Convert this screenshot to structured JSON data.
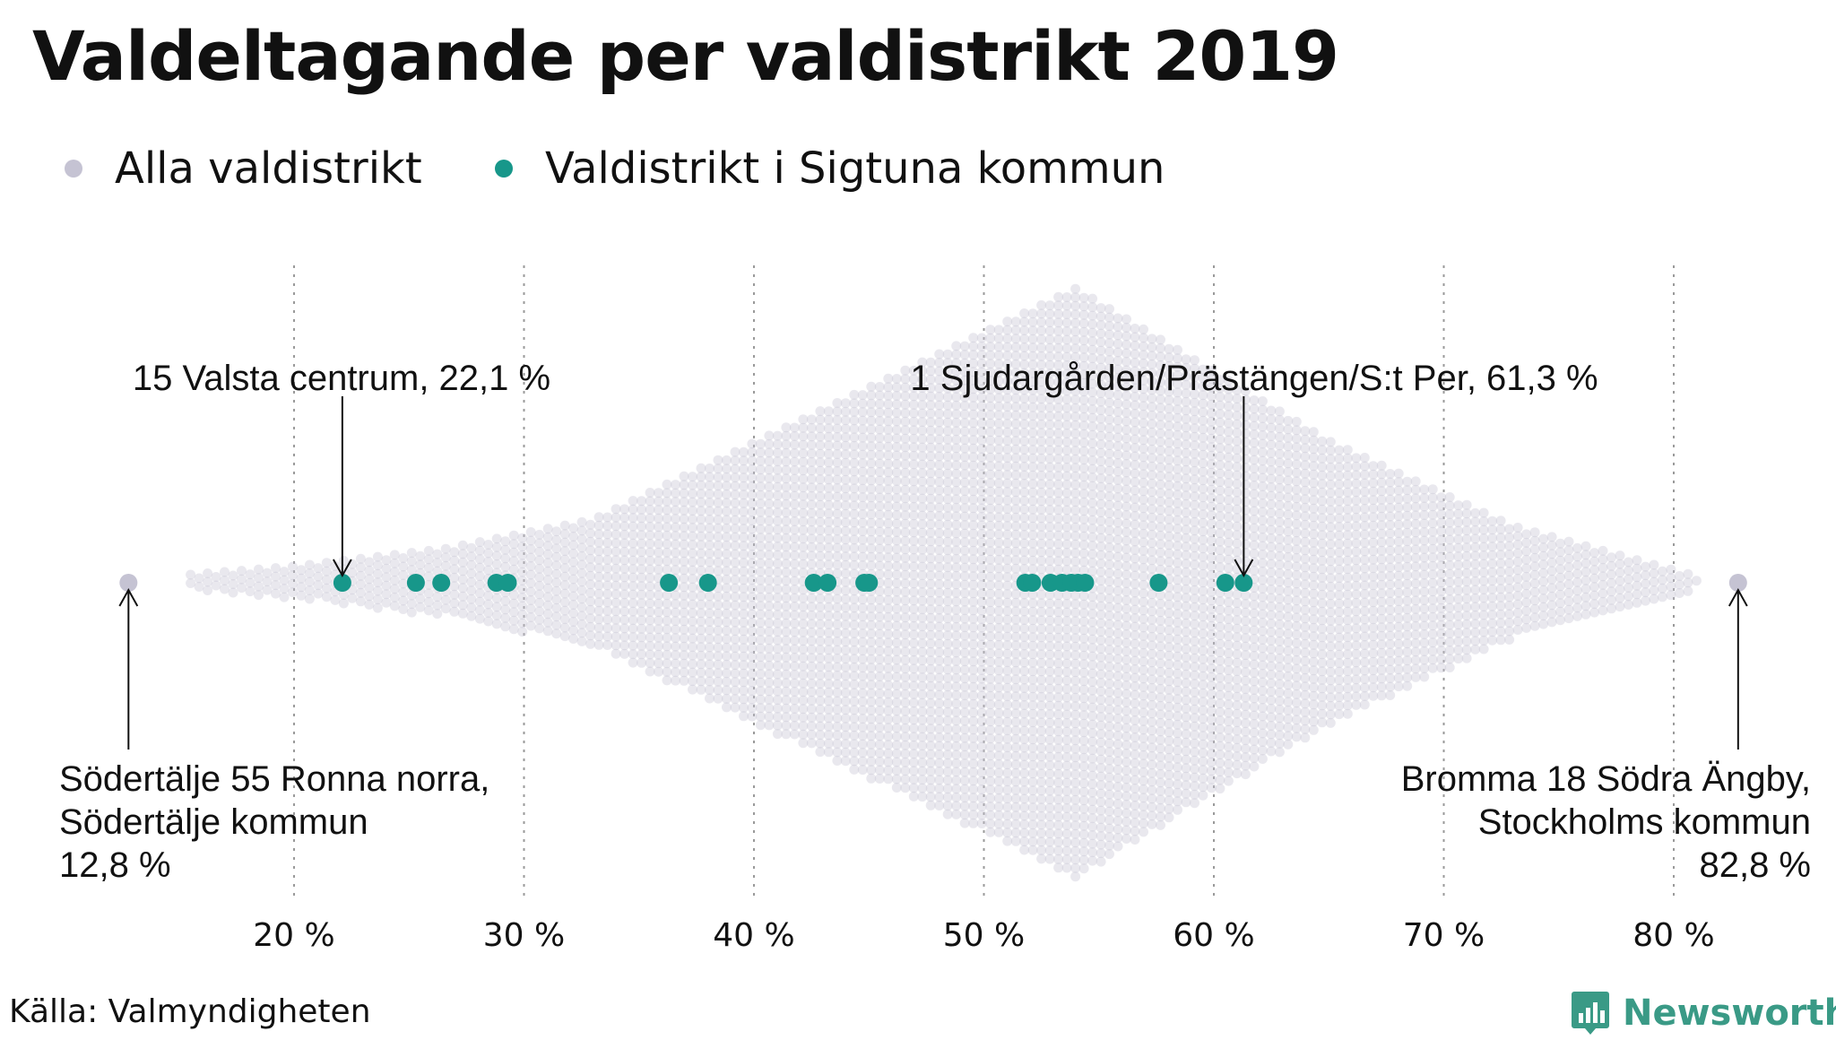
{
  "title": "Valdeltagande per valdistrikt 2019",
  "legend": [
    {
      "label": "Alla valdistrikt",
      "color": "#c5c3d3"
    },
    {
      "label": "Valdistrikt i Sigtuna kommun",
      "color": "#17978a"
    }
  ],
  "source": "Källa: Valmyndigheten",
  "brand": {
    "name": "Newsworthy",
    "icon": "newsworthy-logo-icon",
    "color": "#3a9a86"
  },
  "chart_data": {
    "type": "scatter",
    "subtype": "beeswarm",
    "title": "Valdeltagande per valdistrikt 2019",
    "xlabel": "",
    "ylabel": "",
    "xlim": [
      12,
      84
    ],
    "x_ticks": [
      20,
      30,
      40,
      50,
      60,
      70,
      80
    ],
    "tick_labels": [
      "20 %",
      "30 %",
      "40 %",
      "50 %",
      "60 %",
      "70 %",
      "80 %"
    ],
    "grid": "vertical dotted",
    "legend_placement": "top-left",
    "series": [
      {
        "name": "Alla valdistrikt",
        "color": "#c5c3d3",
        "distribution_note_values": {
          "min": 12.8,
          "max": 82.8,
          "peak": 54
        }
      },
      {
        "name": "Valdistrikt i Sigtuna kommun",
        "color": "#17978a",
        "values": [
          22.1,
          25.3,
          26.4,
          28.8,
          29.3,
          36.3,
          38.0,
          42.6,
          43.2,
          44.8,
          45.0,
          51.8,
          52.1,
          52.9,
          53.4,
          53.8,
          54.1,
          54.4,
          57.6,
          60.5,
          61.3
        ]
      }
    ],
    "highlighted_points": [
      {
        "series": "Alla valdistrikt",
        "x": 12.8
      },
      {
        "series": "Alla valdistrikt",
        "x": 82.8
      }
    ],
    "annotations": [
      {
        "lines": [
          "15 Valsta centrum, 22,1 %"
        ],
        "x": 22.1,
        "placement": "above",
        "align": "center"
      },
      {
        "lines": [
          "1 Sjudargården/Prästängen/S:t Per, 61,3 %"
        ],
        "x": 61.3,
        "placement": "above",
        "align": "center"
      },
      {
        "lines": [
          "Södertälje 55 Ronna norra,",
          "Södertälje kommun",
          "12,8 %"
        ],
        "x": 12.8,
        "placement": "below",
        "align": "left"
      },
      {
        "lines": [
          "Bromma 18 Södra Ängby,",
          "Stockholms kommun",
          "82,8 %"
        ],
        "x": 82.8,
        "placement": "below",
        "align": "right"
      }
    ]
  }
}
